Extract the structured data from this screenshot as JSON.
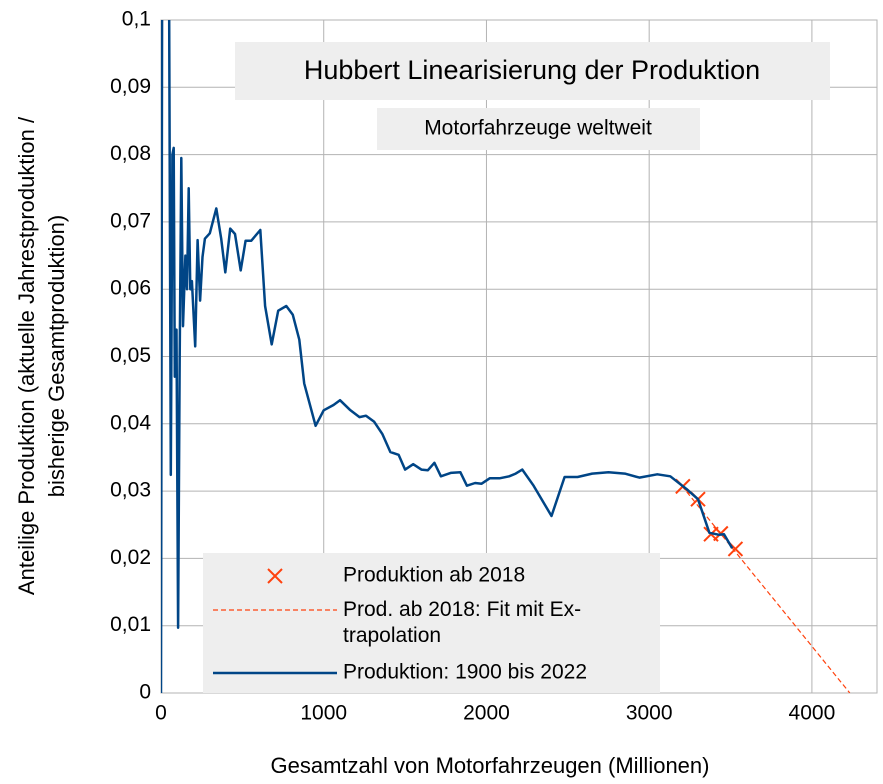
{
  "chart_data": {
    "type": "line",
    "title": "Hubbert Linearisierung der Produktion",
    "subtitle": "Motorfahrzeuge weltweit",
    "xlabel": "Gesamtzahl von Motorfahrzeugen (Millionen)",
    "ylabel": "Anteilige Produktion (aktuelle Jahrestproduktion /\nbisherige Gesamtproduktion)",
    "xlim": [
      0,
      4400
    ],
    "xticks": [
      0,
      1000,
      2000,
      3000,
      4000
    ],
    "ylim": [
      0,
      0.1
    ],
    "yticks": [
      0,
      {
        "value": 0.01,
        "label": "0,01"
      },
      {
        "value": 0.02,
        "label": "0,02"
      },
      {
        "value": 0.03,
        "label": "0,03"
      },
      {
        "value": 0.04,
        "label": "0,04"
      },
      {
        "value": 0.05,
        "label": "0,05"
      },
      {
        "value": 0.06,
        "label": "0,06"
      },
      {
        "value": 0.07,
        "label": "0,07"
      },
      {
        "value": 0.08,
        "label": "0,08"
      },
      {
        "value": 0.09,
        "label": "0,09"
      },
      {
        "value": 0.1,
        "label": "0,1"
      }
    ],
    "grid": true,
    "legend": "bottom",
    "series": [
      {
        "name": "Produktion ab 2018",
        "type": "scatter",
        "color": "#ff420e",
        "x": [
          3207,
          3300,
          3380,
          3440,
          3530
        ],
        "values": [
          0.0307,
          0.0288,
          0.0236,
          0.0237,
          0.0214
        ]
      },
      {
        "name": "Prod. ab 2018: Fit mit Ex-\ntrapolation",
        "type": "line",
        "linestyle": "dashed",
        "color": "#ff420e",
        "x": [
          3200,
          4233
        ],
        "values": [
          0.0308,
          0
        ]
      },
      {
        "name": "Produktion: 1900 bis 2022",
        "type": "line",
        "color": "#004586",
        "x": [
          0,
          10,
          43,
          60,
          70,
          78,
          85,
          95,
          105,
          115,
          125,
          135,
          150,
          160,
          170,
          180,
          190,
          210,
          225,
          240,
          255,
          270,
          300,
          340,
          370,
          395,
          425,
          455,
          490,
          520,
          555,
          610,
          640,
          680,
          720,
          770,
          810,
          850,
          880,
          950,
          1000,
          1060,
          1100,
          1160,
          1220,
          1260,
          1310,
          1360,
          1410,
          1460,
          1500,
          1550,
          1600,
          1640,
          1680,
          1720,
          1780,
          1840,
          1880,
          1930,
          1970,
          2020,
          2080,
          2140,
          2180,
          2220,
          2290,
          2400,
          2480,
          2560,
          2650,
          2750,
          2850,
          2940,
          3050,
          3130,
          3230,
          3300,
          3370,
          3430,
          3460,
          3510
        ],
        "values": [
          0,
          0.15,
          0.15,
          0.0324,
          0.08,
          0.081,
          0.047,
          0.054,
          0.0097,
          0.05,
          0.0795,
          0.0545,
          0.065,
          0.06,
          0.075,
          0.06,
          0.0612,
          0.0515,
          0.0673,
          0.0583,
          0.0648,
          0.0675,
          0.0683,
          0.072,
          0.0675,
          0.0625,
          0.069,
          0.0682,
          0.0628,
          0.0672,
          0.0672,
          0.0688,
          0.0575,
          0.0518,
          0.0568,
          0.0575,
          0.0562,
          0.0525,
          0.046,
          0.0397,
          0.042,
          0.0428,
          0.0435,
          0.0421,
          0.041,
          0.0412,
          0.0403,
          0.0385,
          0.0358,
          0.0354,
          0.0332,
          0.034,
          0.0332,
          0.0331,
          0.0342,
          0.0322,
          0.0327,
          0.0328,
          0.0308,
          0.0312,
          0.0311,
          0.0319,
          0.0319,
          0.0322,
          0.0326,
          0.0332,
          0.0308,
          0.0263,
          0.0321,
          0.0321,
          0.0326,
          0.0328,
          0.0326,
          0.032,
          0.0325,
          0.0322,
          0.0303,
          0.0288,
          0.0238,
          0.0235,
          0.0236,
          0.0215
        ]
      }
    ]
  }
}
